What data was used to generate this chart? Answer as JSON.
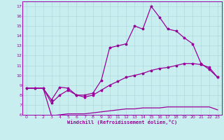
{
  "xlabel": "Windchill (Refroidissement éolien,°C)",
  "bg_color": "#c8eef0",
  "grid_color": "#b0d8dc",
  "line_color": "#990099",
  "spine_color": "#9900aa",
  "xlim": [
    -0.5,
    23.5
  ],
  "ylim": [
    6,
    17.5
  ],
  "xticks": [
    0,
    1,
    2,
    3,
    4,
    5,
    6,
    7,
    8,
    9,
    10,
    11,
    12,
    13,
    14,
    15,
    16,
    17,
    18,
    19,
    20,
    21,
    22,
    23
  ],
  "yticks": [
    6,
    7,
    8,
    9,
    10,
    11,
    12,
    13,
    14,
    15,
    16,
    17
  ],
  "series1_x": [
    0,
    1,
    2,
    3,
    4,
    5,
    6,
    7,
    8,
    9,
    10,
    11,
    12,
    13,
    14,
    15,
    16,
    17,
    18,
    19,
    20,
    21,
    22,
    23
  ],
  "series1_y": [
    8.7,
    8.7,
    8.7,
    7.5,
    8.8,
    8.7,
    8.0,
    8.0,
    8.2,
    9.5,
    12.8,
    13.0,
    13.2,
    15.0,
    14.7,
    17.0,
    15.9,
    14.7,
    14.5,
    13.8,
    13.2,
    11.2,
    10.6,
    9.8
  ],
  "series2_x": [
    0,
    1,
    2,
    3,
    4,
    5,
    6,
    7,
    8,
    9,
    10,
    11,
    12,
    13,
    14,
    15,
    16,
    17,
    18,
    19,
    20,
    21,
    22,
    23
  ],
  "series2_y": [
    8.7,
    8.7,
    8.7,
    7.2,
    8.0,
    8.5,
    8.0,
    7.8,
    8.0,
    8.5,
    9.0,
    9.4,
    9.8,
    10.0,
    10.2,
    10.5,
    10.7,
    10.8,
    11.0,
    11.2,
    11.2,
    11.1,
    10.8,
    9.8
  ],
  "series3_x": [
    0,
    1,
    2,
    3,
    4,
    5,
    6,
    7,
    8,
    9,
    10,
    11,
    12,
    13,
    14,
    15,
    16,
    17,
    18,
    19,
    20,
    21,
    22,
    23
  ],
  "series3_y": [
    8.7,
    8.7,
    8.7,
    5.9,
    6.0,
    6.1,
    6.1,
    6.1,
    6.2,
    6.3,
    6.4,
    6.5,
    6.6,
    6.6,
    6.7,
    6.7,
    6.7,
    6.8,
    6.8,
    6.8,
    6.8,
    6.8,
    6.8,
    6.5
  ]
}
